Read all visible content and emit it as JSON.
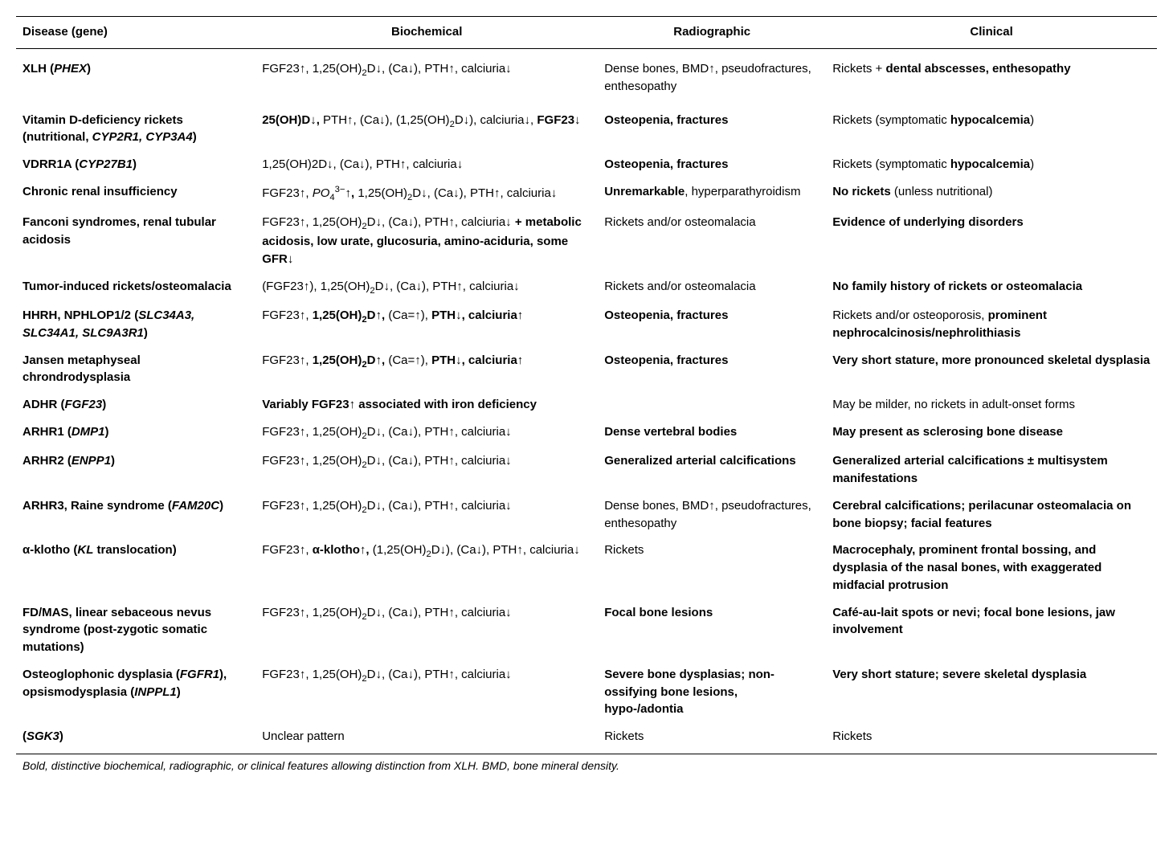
{
  "headers": {
    "disease": "Disease (gene)",
    "biochemical": "Biochemical",
    "radiographic": "Radiographic",
    "clinical": "Clinical"
  },
  "rows": [
    {
      "disease": "XLH (<span class='bi'>PHEX</span>)",
      "biochemical": "FGF23↑, 1,25(OH)<sub>2</sub>D↓, (Ca↓), PTH↑, calciuria↓",
      "radiographic": "Dense bones, BMD↑, pseudofractures, enthesopathy",
      "clinical": "Rickets + <span class='b'>dental abscesses, enthesopathy</span>"
    },
    {
      "disease": "Vitamin D-deficiency rickets (nutritional, <span class='bi'>CYP2R1, CYP3A4</span>)",
      "biochemical": "<span class='b'>25(OH)D↓,</span> PTH↑, (Ca↓), (1,25(OH)<sub>2</sub>D↓), calciuria↓, <span class='b'>FGF23↓</span>",
      "radiographic": "<span class='b'>Osteopenia, fractures</span>",
      "clinical": "Rickets (symptomatic <span class='b'>hypocalcemia</span>)"
    },
    {
      "disease": "VDRR1A (<span class='bi'>CYP27B1</span>)",
      "biochemical": "1,25(OH)2D↓, (Ca↓), PTH↑, calciuria↓",
      "radiographic": "<span class='b'>Osteopenia, fractures</span>",
      "clinical": "Rickets (symptomatic <span class='b'>hypocalcemia</span>)"
    },
    {
      "disease": "Chronic renal insufficiency",
      "biochemical": "FGF23↑, <span class='i'>PO</span><sub>4</sub><sup>3−</sup><span class='b'>↑,</span> 1,25(OH)<sub>2</sub>D↓, (Ca↓), PTH↑, calciuria↓",
      "radiographic": "<span class='b'>Unremarkable</span>, hyperparathyroidism",
      "clinical": "<span class='b'>No rickets</span> (unless nutritional)"
    },
    {
      "disease": "Fanconi syndromes, renal tubular acidosis",
      "biochemical": "FGF23↑, 1,25(OH)<sub>2</sub>D↓, (Ca↓), PTH↑, calciuria↓ <span class='b'>+ metabolic acidosis, low urate, glucosuria, amino-aciduria, some GFR↓</span>",
      "radiographic": "Rickets and/or osteomalacia",
      "clinical": "<span class='b'>Evidence of underlying disorders</span>"
    },
    {
      "disease": "Tumor-induced rickets/osteomalacia",
      "biochemical": "(FGF23↑), 1,25(OH)<sub>2</sub>D↓, (Ca↓), PTH↑, calciuria↓",
      "radiographic": "Rickets and/or osteomalacia",
      "clinical": "<span class='b'>No family history of rickets or osteomalacia</span>"
    },
    {
      "disease": "HHRH, NPHLOP1/2 (<span class='bi'>SLC34A3, SLC34A1, SLC9A3R1</span>)",
      "biochemical": "FGF23↑, <span class='b'>1,25(OH)<sub>2</sub>D↑,</span> (Ca=↑), <span class='b'>PTH↓, calciuria↑</span>",
      "radiographic": "<span class='b'>Osteopenia, fractures</span>",
      "clinical": "Rickets and/or osteoporosis, <span class='b'>prominent nephrocalcinosis/nephrolithiasis</span>"
    },
    {
      "disease": "Jansen metaphyseal chrondrodysplasia",
      "biochemical": "FGF23↑, <span class='b'>1,25(OH)<sub>2</sub>D↑,</span> (Ca=↑), <span class='b'>PTH↓, calciuria↑</span>",
      "radiographic": "<span class='b'>Osteopenia, fractures</span>",
      "clinical": "<span class='b'>Very short stature, more pronounced skeletal dysplasia</span>"
    },
    {
      "disease": "ADHR (<span class='bi'>FGF23</span>)",
      "biochemical": "<span class='b'>Variably FGF23↑ associated with iron deficiency</span>",
      "radiographic": "",
      "clinical": "May be milder, no rickets in adult-onset forms"
    },
    {
      "disease": "ARHR1 (<span class='bi'>DMP1</span>)",
      "biochemical": "FGF23↑, 1,25(OH)<sub>2</sub>D↓, (Ca↓), PTH↑, calciuria↓",
      "radiographic": "<span class='b'>Dense vertebral bodies</span>",
      "clinical": "<span class='b'>May present as sclerosing bone disease</span>"
    },
    {
      "disease": "ARHR2 (<span class='bi'>ENPP1</span>)",
      "biochemical": "FGF23↑, 1,25(OH)<sub>2</sub>D↓, (Ca↓), PTH↑, calciuria↓",
      "radiographic": "<span class='b'>Generalized arterial calcifications</span>",
      "clinical": "<span class='b'>Generalized arterial calcifications ± multisystem manifestations</span>"
    },
    {
      "disease": "ARHR3, Raine syndrome (<span class='bi'>FAM20C</span>)",
      "biochemical": "FGF23↑, 1,25(OH)<sub>2</sub>D↓, (Ca↓), PTH↑, calciuria↓",
      "radiographic": "Dense bones, BMD↑, pseudofractures, enthesopathy",
      "clinical": "<span class='b'>Cerebral calcifications; perilacunar osteomalacia on bone biopsy; facial features</span>"
    },
    {
      "disease": "α-klotho (<span class='bi'>KL</span> translocation)",
      "biochemical": "FGF23↑, <span class='b'>α-klotho↑,</span> (1,25(OH)<sub>2</sub>D↓), (Ca↓), PTH↑, calciuria↓",
      "radiographic": "Rickets",
      "clinical": "<span class='b'>Macrocephaly, prominent frontal bossing, and dysplasia of the nasal bones, with exaggerated midfacial protrusion</span>"
    },
    {
      "disease": "FD/MAS, linear sebaceous nevus syndrome (post-zygotic somatic mutations)",
      "biochemical": "FGF23↑, 1,25(OH)<sub>2</sub>D↓, (Ca↓), PTH↑, calciuria↓",
      "radiographic": "<span class='b'>Focal bone lesions</span>",
      "clinical": "<span class='b'>Café-au-lait spots or nevi; focal bone lesions, jaw involvement</span>"
    },
    {
      "disease": "Osteoglophonic dysplasia (<span class='bi'>FGFR1</span>), opsismodysplasia (<span class='bi'>INPPL1</span>)",
      "biochemical": "FGF23↑, 1,25(OH)<sub>2</sub>D↓, (Ca↓), PTH↑, calciuria↓",
      "radiographic": "<span class='b'>Severe bone dysplasias; non-ossifying bone lesions, hypo-/adontia</span>",
      "clinical": "<span class='b'>Very short stature; severe skeletal dysplasia</span>"
    },
    {
      "disease": "(<span class='bi'>SGK3</span>)",
      "biochemical": "Unclear pattern",
      "radiographic": "Rickets",
      "clinical": "Rickets"
    }
  ],
  "footnote": "Bold, distinctive biochemical, radiographic, or clinical features allowing distinction from XLH. BMD, bone mineral density."
}
